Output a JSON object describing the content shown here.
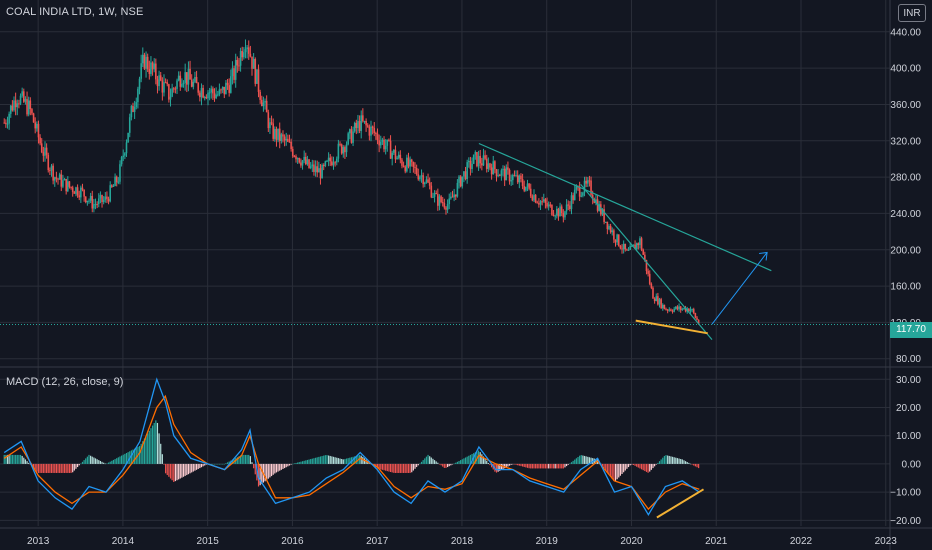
{
  "header": {
    "symbol_title": "COAL INDIA LTD, 1W, NSE",
    "currency_label": "INR",
    "last_price": "117.70"
  },
  "macd_pane": {
    "title": "MACD (12, 26, close, 9)"
  },
  "colors": {
    "background": "#131722",
    "up": "#26a69a",
    "down": "#ef5350",
    "grid": "#2a2e39",
    "macd_line": "#2196f3",
    "signal_line": "#ff6d00",
    "trendline": "#26a69a",
    "support_line": "#f2b134",
    "projection_arrow": "#2196f3",
    "text": "#d1d4dc"
  },
  "chart_data": [
    {
      "type": "line",
      "title": "COAL INDIA LTD, 1W, NSE",
      "x_ticks": [
        "2013",
        "2014",
        "2015",
        "2016",
        "2017",
        "2018",
        "2019",
        "2020",
        "2021",
        "2022",
        "2023"
      ],
      "y_ticks": [
        "80.00",
        "120.00",
        "160.00",
        "200.00",
        "240.00",
        "280.00",
        "320.00",
        "360.00",
        "400.00",
        "440.00"
      ],
      "ylim": [
        72,
        475
      ],
      "xlim": [
        2012.55,
        2023.05
      ],
      "last_price": 117.7,
      "x": [
        2012.6,
        2012.75,
        2012.9,
        2013.05,
        2013.2,
        2013.35,
        2013.5,
        2013.65,
        2013.8,
        2013.95,
        2014.1,
        2014.25,
        2014.4,
        2014.55,
        2014.7,
        2014.85,
        2015.0,
        2015.15,
        2015.3,
        2015.45,
        2015.6,
        2015.75,
        2015.9,
        2016.05,
        2016.2,
        2016.35,
        2016.5,
        2016.65,
        2016.8,
        2016.95,
        2017.1,
        2017.25,
        2017.4,
        2017.55,
        2017.7,
        2017.85,
        2018.0,
        2018.15,
        2018.3,
        2018.45,
        2018.6,
        2018.75,
        2018.9,
        2019.05,
        2019.2,
        2019.35,
        2019.5,
        2019.65,
        2019.8,
        2019.95,
        2020.1,
        2020.25,
        2020.4,
        2020.55,
        2020.7,
        2020.8
      ],
      "series": [
        {
          "name": "",
          "values": [
            340,
            370,
            355,
            310,
            280,
            270,
            265,
            250,
            255,
            280,
            350,
            410,
            390,
            370,
            395,
            380,
            375,
            370,
            390,
            435,
            380,
            330,
            320,
            305,
            290,
            285,
            305,
            320,
            340,
            330,
            315,
            300,
            290,
            280,
            255,
            250,
            280,
            300,
            295,
            285,
            280,
            270,
            255,
            245,
            240,
            265,
            270,
            240,
            215,
            195,
            210,
            150,
            135,
            135,
            135,
            118
          ]
        }
      ],
      "annotations": [
        "descending trendline",
        "projection arrow",
        "support line"
      ]
    },
    {
      "type": "line",
      "title": "MACD (12, 26, close, 9)",
      "y_ticks": [
        "30.00",
        "20.00",
        "10.00",
        "0.00",
        "−10.00",
        "−20.00"
      ],
      "ylim": [
        -22,
        34
      ],
      "x": [
        2012.6,
        2012.8,
        2013.0,
        2013.2,
        2013.4,
        2013.6,
        2013.8,
        2014.0,
        2014.2,
        2014.4,
        2014.5,
        2014.6,
        2014.8,
        2015.0,
        2015.2,
        2015.4,
        2015.5,
        2015.6,
        2015.8,
        2016.0,
        2016.2,
        2016.4,
        2016.6,
        2016.8,
        2017.0,
        2017.2,
        2017.4,
        2017.6,
        2017.8,
        2018.0,
        2018.2,
        2018.4,
        2018.6,
        2018.8,
        2019.0,
        2019.2,
        2019.4,
        2019.6,
        2019.8,
        2020.0,
        2020.2,
        2020.4,
        2020.6,
        2020.8
      ],
      "series": [
        {
          "name": "MACD",
          "values": [
            4,
            8,
            -6,
            -12,
            -16,
            -8,
            -10,
            -2,
            8,
            30,
            22,
            10,
            2,
            0,
            -2,
            5,
            12,
            -5,
            -14,
            -12,
            -10,
            -5,
            -2,
            4,
            -2,
            -10,
            -14,
            -6,
            -10,
            -6,
            6,
            -2,
            -2,
            -6,
            -8,
            -10,
            -2,
            2,
            -10,
            -8,
            -18,
            -8,
            -6,
            -10
          ]
        },
        {
          "name": "Signal",
          "values": [
            2,
            6,
            -4,
            -10,
            -14,
            -10,
            -10,
            -4,
            4,
            20,
            24,
            14,
            4,
            0,
            -2,
            3,
            10,
            0,
            -12,
            -12,
            -11,
            -7,
            -3,
            2,
            -1,
            -8,
            -12,
            -8,
            -9,
            -7,
            3,
            0,
            -2,
            -5,
            -7,
            -9,
            -4,
            1,
            -6,
            -8,
            -16,
            -10,
            -7,
            -9
          ]
        }
      ]
    }
  ]
}
